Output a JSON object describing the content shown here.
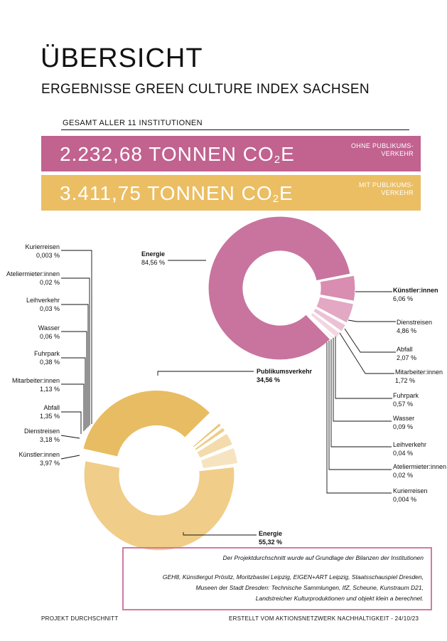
{
  "header": {
    "title": "ÜBERSICHT",
    "subtitle": "ERGEBNISSE GREEN CULTURE INDEX SACHSEN",
    "gesamt": "GESAMT ALLER 11 INSTITUTIONEN"
  },
  "totals": {
    "ohne": {
      "value": "2.232,68 TONNEN CO",
      "sub": "2",
      "suffix": "E",
      "tag": "OHNE PUBLIKUMS-VERKEHR",
      "color": "#c1628f"
    },
    "mit": {
      "value": "3.411,75 TONNEN CO",
      "sub": "2",
      "suffix": "E",
      "tag": "MIT PUBLIKUMS-VERKEHR",
      "color": "#ebbe63"
    }
  },
  "chart_data": [
    {
      "type": "pie",
      "variant": "donut",
      "context": "OHNE PUBLIKUMSVERKEHR",
      "unit": "%",
      "categories": [
        "Energie",
        "Künstler:innen",
        "Dienstreisen",
        "Abfall",
        "Mitarbeiter:innen",
        "Fuhrpark",
        "Wasser",
        "Leihverkehr",
        "Ateliermieter:innen",
        "Kurierreisen"
      ],
      "values": [
        84.56,
        6.06,
        4.86,
        2.07,
        1.72,
        0.57,
        0.09,
        0.04,
        0.02,
        0.004
      ],
      "labels": [
        "84,56 %",
        "6,06 %",
        "4,86 %",
        "2,07 %",
        "1,72 %",
        "0,57 %",
        "0,09 %",
        "0,04 %",
        "0,02 %",
        "0,004 %"
      ],
      "colors": [
        "#c8749e",
        "#d88db1",
        "#e2a8c4",
        "#ebc2d5",
        "#f3d6e3",
        "#cc5e91",
        "#d9709f",
        "#e089ae",
        "#e9a4c1",
        "#f1c4d8"
      ]
    },
    {
      "type": "pie",
      "variant": "donut",
      "context": "MIT PUBLIKUMSVERKEHR",
      "unit": "%",
      "categories": [
        "Energie",
        "Publikumsverkehr",
        "Kurierreisen",
        "Ateliermieter:innen",
        "Leihverkehr",
        "Wasser",
        "Fuhrpark",
        "Mitarbeiter:innen",
        "Abfall",
        "Dienstreisen",
        "Künstler:innen"
      ],
      "values": [
        55.32,
        34.56,
        0.003,
        0.02,
        0.03,
        0.06,
        0.38,
        1.13,
        1.35,
        3.18,
        3.97
      ],
      "labels": [
        "55,32 %",
        "34,56 %",
        "0,003 %",
        "0,02 %",
        "0,03 %",
        "0,06 %",
        "0,38 %",
        "1,13 %",
        "1,35 %",
        "3,18 %",
        "3,97 %"
      ],
      "colors": [
        "#f0cd88",
        "#e8bc62",
        "#d7a848",
        "#dcae52",
        "#e0b45c",
        "#e4ba66",
        "#e6bc68",
        "#ebc678",
        "#eecd8a",
        "#f3dbab",
        "#f6e4c1"
      ]
    }
  ],
  "info": {
    "line1": "Der Projektdurchschnitt wurde auf Grundlage der Bilanzen der Institutionen",
    "line2": "GEH8, Künstlergut Prösitz, Moritzbastei Leipzig, EIGEN+ART Leipzig, Staatsschauspiel Dresden,",
    "line3": "Museen der Stadt Dresden: Technische Sammlungen, IfZ, Scheune, Kunstraum D21,",
    "line4": "Landstreicher Kulturproduktionen und objekt klein a berechnet."
  },
  "footer": {
    "left": "PROJEKT DURCHSCHNITT",
    "right": "ERSTELLT VOM AKTIONSNETZWERK NACHHALTIGKEIT -  24/10/23"
  }
}
